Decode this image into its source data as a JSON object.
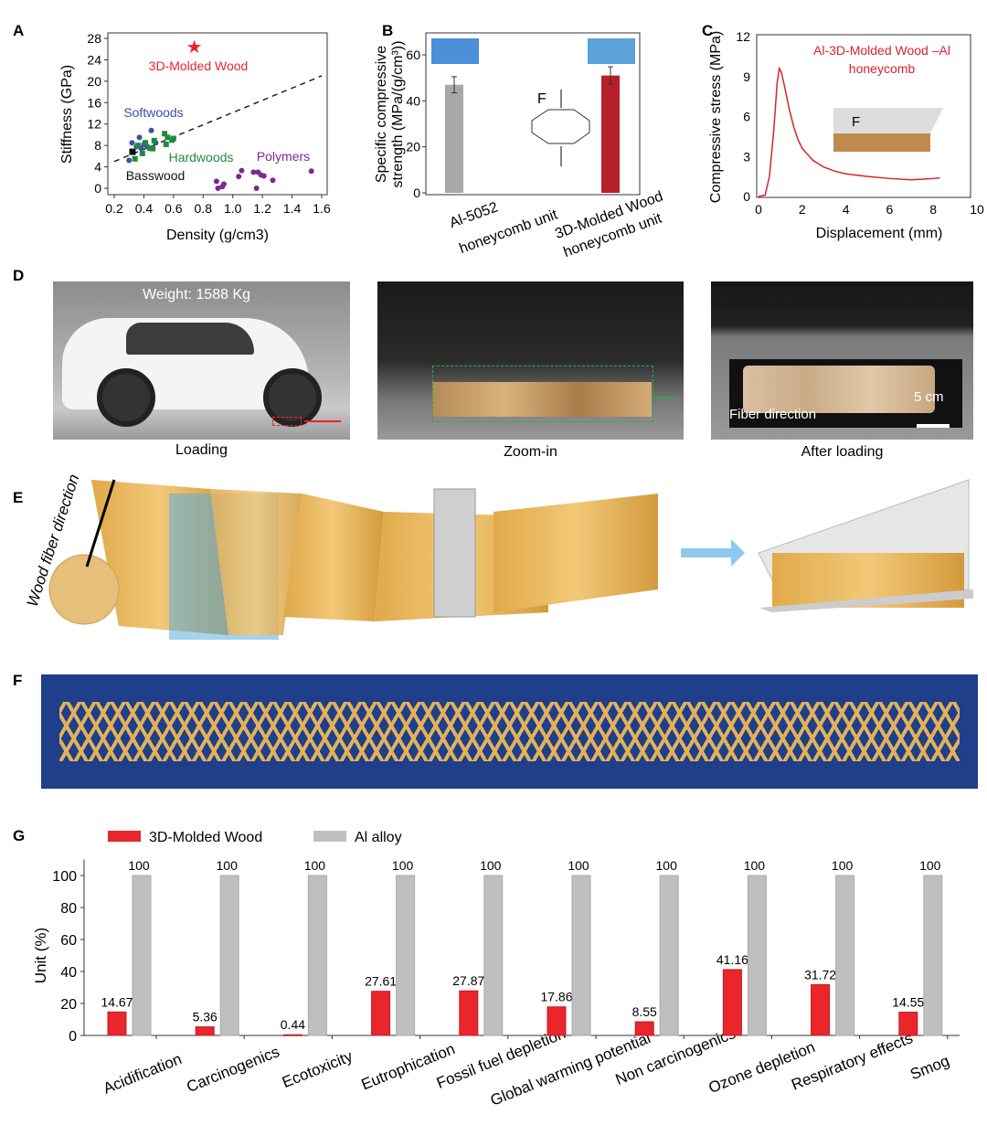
{
  "panels": {
    "A": "A",
    "B": "B",
    "C": "C",
    "D": "D",
    "E": "E",
    "F": "F",
    "G": "G"
  },
  "chart_data": [
    {
      "id": "A",
      "type": "scatter",
      "xlabel": "Density (g/cm3)",
      "ylabel": "Stiffness (GPa)",
      "xlim": [
        0.2,
        1.6
      ],
      "ylim": [
        0,
        28
      ],
      "xticks": [
        "0.2",
        "0.4",
        "0.6",
        "0.8",
        "1.0",
        "1.2",
        "1.4",
        "1.6"
      ],
      "yticks": [
        "0",
        "4",
        "8",
        "12",
        "16",
        "20",
        "24",
        "28"
      ],
      "trendline": {
        "style": "dashed",
        "points": [
          [
            0.2,
            5
          ],
          [
            1.6,
            21
          ]
        ]
      },
      "series": [
        {
          "name": "3D-Molded Wood",
          "color": "#e8262b",
          "marker": "star",
          "points": [
            [
              0.74,
              26.5
            ]
          ]
        },
        {
          "name": "Softwoods",
          "color": "#3a4fa8",
          "marker": "circle",
          "points": [
            [
              0.3,
              5.2
            ],
            [
              0.32,
              8.5
            ],
            [
              0.35,
              7.8
            ],
            [
              0.37,
              9.5
            ],
            [
              0.38,
              7.5
            ],
            [
              0.4,
              8.2
            ],
            [
              0.42,
              7.9
            ],
            [
              0.45,
              10.8
            ],
            [
              0.48,
              8.5
            ]
          ]
        },
        {
          "name": "Hardwoods",
          "color": "#1f8a3c",
          "marker": "square",
          "points": [
            [
              0.34,
              5.5
            ],
            [
              0.36,
              8.0
            ],
            [
              0.39,
              6.5
            ],
            [
              0.41,
              8.5
            ],
            [
              0.44,
              7.5
            ],
            [
              0.46,
              7.4
            ],
            [
              0.47,
              8.9
            ],
            [
              0.54,
              10.2
            ],
            [
              0.55,
              8.2
            ],
            [
              0.56,
              9.5
            ],
            [
              0.59,
              9.0
            ],
            [
              0.6,
              9.3
            ]
          ]
        },
        {
          "name": "Basswood",
          "color": "#111111",
          "marker": "square",
          "points": [
            [
              0.32,
              6.9
            ]
          ]
        },
        {
          "name": "Polymers",
          "color": "#7b2a8e",
          "marker": "circle",
          "points": [
            [
              0.89,
              1.3
            ],
            [
              0.9,
              0
            ],
            [
              0.93,
              0.3
            ],
            [
              0.94,
              0.8
            ],
            [
              1.04,
              2.2
            ],
            [
              1.06,
              3.3
            ],
            [
              1.14,
              3.0
            ],
            [
              1.16,
              0
            ],
            [
              1.17,
              3.0
            ],
            [
              1.19,
              2.5
            ],
            [
              1.21,
              2.3
            ],
            [
              1.27,
              1.5
            ],
            [
              1.53,
              3.2
            ]
          ]
        }
      ]
    },
    {
      "id": "B",
      "type": "bar",
      "ylabel": "Specific compressive strength (MPa/(g/cm3))",
      "ylim": [
        0,
        70
      ],
      "yticks": [
        "0",
        "20",
        "40",
        "60"
      ],
      "categories": [
        "Al-5052 honeycomb unit",
        "3D-Molded Wood honeycomb unit"
      ],
      "category_lines": [
        [
          "Al-5052",
          "honeycomb unit"
        ],
        [
          "3D-Molded Wood",
          "honeycomb unit"
        ]
      ],
      "values": [
        47,
        51
      ],
      "errors": [
        3.5,
        3.8
      ],
      "colors": [
        "#a8a8a8",
        "#b5202a"
      ],
      "inset_force_label": "F"
    },
    {
      "id": "C",
      "type": "line",
      "xlabel": "Displacement (mm)",
      "ylabel": "Compressive stress (MPa)",
      "xlim": [
        0,
        10
      ],
      "ylim": [
        0,
        12
      ],
      "xticks": [
        "0",
        "2",
        "4",
        "6",
        "8",
        "10"
      ],
      "yticks": [
        "0",
        "3",
        "6",
        "9",
        "12"
      ],
      "series": [
        {
          "name": "Al-3D-Molded Wood –Al honeycomb",
          "name_lines": [
            "Al-3D-Molded Wood –Al",
            "honeycomb"
          ],
          "color": "#d9232e",
          "points": [
            [
              0,
              0
            ],
            [
              0.3,
              0.1
            ],
            [
              0.5,
              1.5
            ],
            [
              0.7,
              5
            ],
            [
              0.85,
              8.5
            ],
            [
              0.95,
              9.6
            ],
            [
              1.05,
              9.3
            ],
            [
              1.2,
              8.2
            ],
            [
              1.4,
              6.6
            ],
            [
              1.6,
              5.3
            ],
            [
              1.8,
              4.3
            ],
            [
              2.0,
              3.6
            ],
            [
              2.5,
              2.7
            ],
            [
              3,
              2.2
            ],
            [
              3.5,
              1.9
            ],
            [
              4,
              1.7
            ],
            [
              5,
              1.5
            ],
            [
              6,
              1.35
            ],
            [
              7,
              1.25
            ],
            [
              8,
              1.35
            ],
            [
              8.3,
              1.4
            ]
          ]
        }
      ],
      "inset_force_label": "F"
    },
    {
      "id": "G",
      "type": "bar",
      "ylabel": "Unit (%)",
      "ylim": [
        0,
        110
      ],
      "yticks": [
        "0",
        "20",
        "40",
        "60",
        "80",
        "100"
      ],
      "categories": [
        "Acidification",
        "Carcinogenics",
        "Ecotoxicity",
        "Eutrophication",
        "Fossil fuel depletion",
        "Global warming potential",
        "Non carcinogenics",
        "Ozone depletion",
        "Respiratory effects",
        "Smog"
      ],
      "series": [
        {
          "name": "3D-Molded  Wood",
          "color": "#e8262b",
          "values": [
            14.67,
            5.36,
            0.44,
            27.61,
            27.87,
            17.86,
            8.55,
            41.16,
            31.72,
            14.55
          ],
          "labels": [
            "14.67",
            "5.36",
            "0.44",
            "27.61",
            "27.87",
            "17.86",
            "8.55",
            "41.16",
            "31.72",
            "14.55"
          ]
        },
        {
          "name": "Al alloy",
          "color": "#bfbfbf",
          "values": [
            100,
            100,
            100,
            100,
            100,
            100,
            100,
            100,
            100,
            100
          ],
          "labels": [
            "100",
            "100",
            "100",
            "100",
            "100",
            "100",
            "100",
            "100",
            "100",
            "100"
          ]
        }
      ],
      "legend": "top"
    }
  ],
  "panel_d": {
    "weight": "Weight: 1588 Kg",
    "captions": [
      "Loading",
      "Zoom-in",
      "After loading"
    ],
    "fiber": "Fiber direction",
    "scale": "5 cm"
  },
  "panel_e": {
    "fiber": "Wood fiber direction"
  }
}
